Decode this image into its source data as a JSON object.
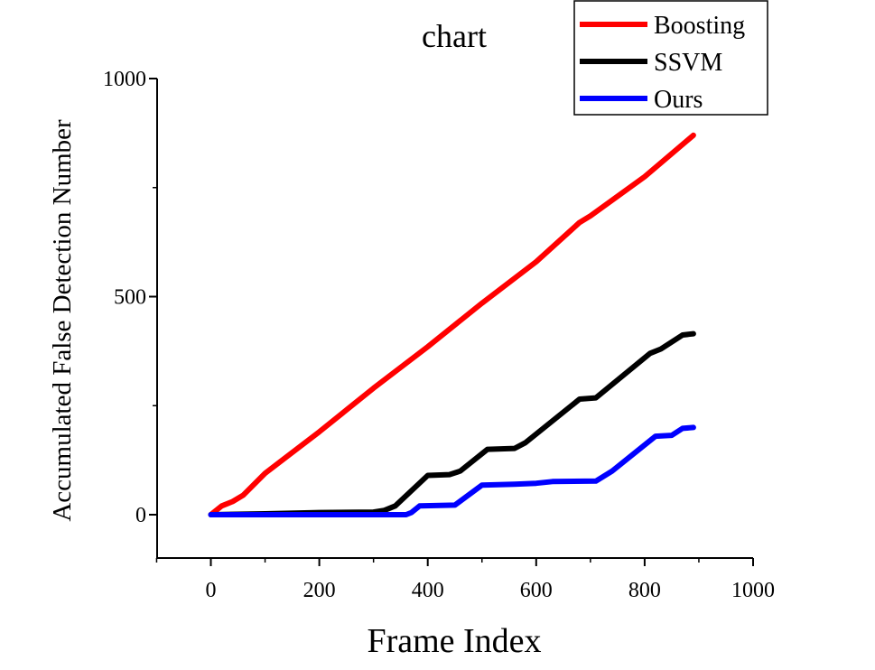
{
  "chart_data": {
    "type": "line",
    "title": "chart",
    "xlabel": "Frame Index",
    "ylabel": "Accumulated False Detection Number",
    "xlim": [
      -100,
      1000
    ],
    "ylim": [
      -100,
      1000
    ],
    "xticks": [
      0,
      200,
      400,
      600,
      800,
      1000
    ],
    "yticks": [
      0,
      500,
      1000
    ],
    "xtick_labels": [
      "0",
      "200",
      "400",
      "600",
      "800",
      "1000"
    ],
    "ytick_labels": [
      "0",
      "500",
      "1000"
    ],
    "grid": false,
    "legend_position": "top-right",
    "series": [
      {
        "name": "Boosting",
        "color": "#ff0000",
        "points": [
          [
            0,
            0
          ],
          [
            20,
            20
          ],
          [
            40,
            30
          ],
          [
            60,
            45
          ],
          [
            100,
            95
          ],
          [
            200,
            190
          ],
          [
            300,
            290
          ],
          [
            400,
            385
          ],
          [
            500,
            485
          ],
          [
            600,
            580
          ],
          [
            680,
            670
          ],
          [
            700,
            685
          ],
          [
            800,
            775
          ],
          [
            890,
            870
          ]
        ]
      },
      {
        "name": "SSVM",
        "color": "#000000",
        "points": [
          [
            0,
            0
          ],
          [
            100,
            2
          ],
          [
            200,
            5
          ],
          [
            300,
            6
          ],
          [
            320,
            10
          ],
          [
            340,
            20
          ],
          [
            400,
            90
          ],
          [
            440,
            92
          ],
          [
            460,
            100
          ],
          [
            510,
            150
          ],
          [
            560,
            152
          ],
          [
            580,
            165
          ],
          [
            680,
            265
          ],
          [
            710,
            268
          ],
          [
            810,
            370
          ],
          [
            830,
            380
          ],
          [
            870,
            412
          ],
          [
            890,
            415
          ]
        ]
      },
      {
        "name": "Ours",
        "color": "#0000ff",
        "points": [
          [
            0,
            0
          ],
          [
            360,
            0
          ],
          [
            370,
            5
          ],
          [
            385,
            20
          ],
          [
            450,
            22
          ],
          [
            500,
            68
          ],
          [
            560,
            70
          ],
          [
            600,
            72
          ],
          [
            630,
            76
          ],
          [
            710,
            77
          ],
          [
            740,
            100
          ],
          [
            820,
            180
          ],
          [
            850,
            182
          ],
          [
            870,
            198
          ],
          [
            890,
            200
          ]
        ]
      }
    ]
  }
}
